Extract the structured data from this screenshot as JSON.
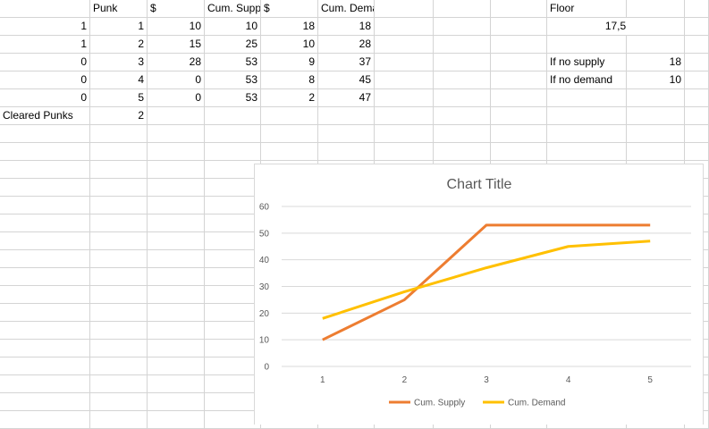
{
  "sheet": {
    "headers": {
      "b": "Punk",
      "c": "$",
      "d": "Cum. Supp",
      "e": "$",
      "f": "Cum. Demand",
      "i": "Floor"
    },
    "rows": [
      {
        "a": "1",
        "b": "1",
        "c": "10",
        "d": "10",
        "e": "18",
        "f": "18"
      },
      {
        "a": "1",
        "b": "2",
        "c": "15",
        "d": "25",
        "e": "10",
        "f": "28"
      },
      {
        "a": "0",
        "b": "3",
        "c": "28",
        "d": "53",
        "e": "9",
        "f": "37"
      },
      {
        "a": "0",
        "b": "4",
        "c": "0",
        "d": "53",
        "e": "8",
        "f": "45"
      },
      {
        "a": "0",
        "b": "5",
        "c": "0",
        "d": "53",
        "e": "2",
        "f": "47"
      }
    ],
    "floor_value": "17,5",
    "if_no_supply_label": "If no supply",
    "if_no_supply_value": "18",
    "if_no_demand_label": "If no demand",
    "if_no_demand_value": "10",
    "cleared_label": "Cleared Punks",
    "cleared_value": "2"
  },
  "chart_data": {
    "type": "line",
    "title": "Chart Title",
    "categories": [
      "1",
      "2",
      "3",
      "4",
      "5"
    ],
    "series": [
      {
        "name": "Cum. Supply",
        "values": [
          10,
          25,
          53,
          53,
          53
        ],
        "color": "#ed7d31"
      },
      {
        "name": "Cum. Demand",
        "values": [
          18,
          28,
          37,
          45,
          47
        ],
        "color": "#ffc000"
      }
    ],
    "ylim": [
      0,
      60
    ],
    "yticks": [
      "0",
      "10",
      "20",
      "30",
      "40",
      "50",
      "60"
    ],
    "grid": true,
    "legend": "bottom"
  }
}
